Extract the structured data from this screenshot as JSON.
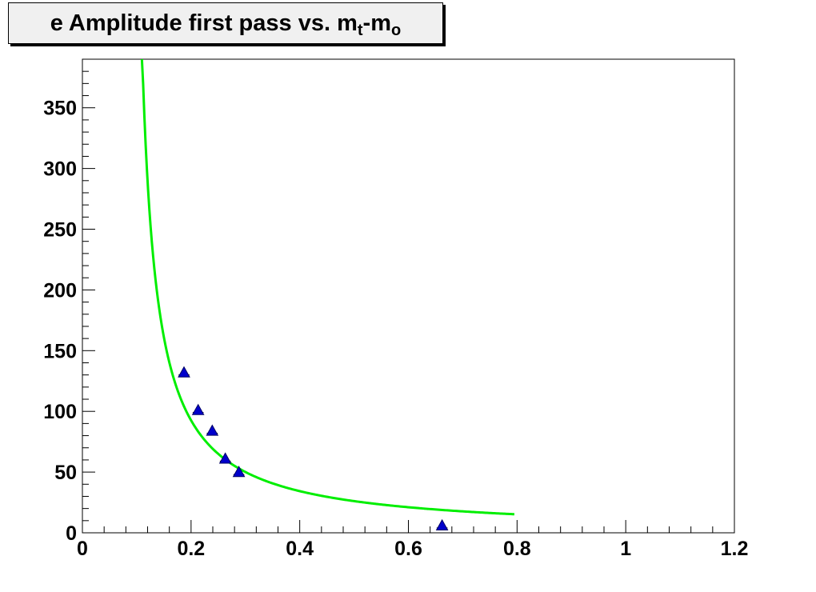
{
  "title": {
    "prefix": "e Amplitude first pass vs. m",
    "sub1": "t",
    "mid": "-m",
    "sub2": "o"
  },
  "chart_data": {
    "type": "scatter",
    "title": "e Amplitude first pass vs. m_t-m_o",
    "xlabel": "",
    "ylabel": "",
    "xlim": [
      0,
      1.2
    ],
    "ylim": [
      0,
      390
    ],
    "x_ticks": [
      "0",
      "0.2",
      "0.4",
      "0.6",
      "0.8",
      "1",
      "1.2"
    ],
    "y_ticks": [
      "0",
      "50",
      "100",
      "150",
      "200",
      "250",
      "300",
      "350"
    ],
    "grid": false,
    "legend": "none",
    "series": [
      {
        "kind": "points",
        "marker": "triangle-up",
        "color": "#0000cc",
        "x": [
          0.187,
          0.213,
          0.239,
          0.263,
          0.288,
          0.662
        ],
        "y": [
          132,
          101,
          84,
          61,
          50,
          6
        ],
        "xerr": [
          0.01,
          0.01,
          0.01,
          0.01,
          0.01,
          0.01
        ]
      },
      {
        "kind": "fit-curve",
        "color": "#00ee00",
        "function": "a / (x - b)",
        "params": {
          "a": 10.9,
          "b": 0.0823
        },
        "x_range": [
          0.1095,
          0.795
        ]
      }
    ]
  }
}
